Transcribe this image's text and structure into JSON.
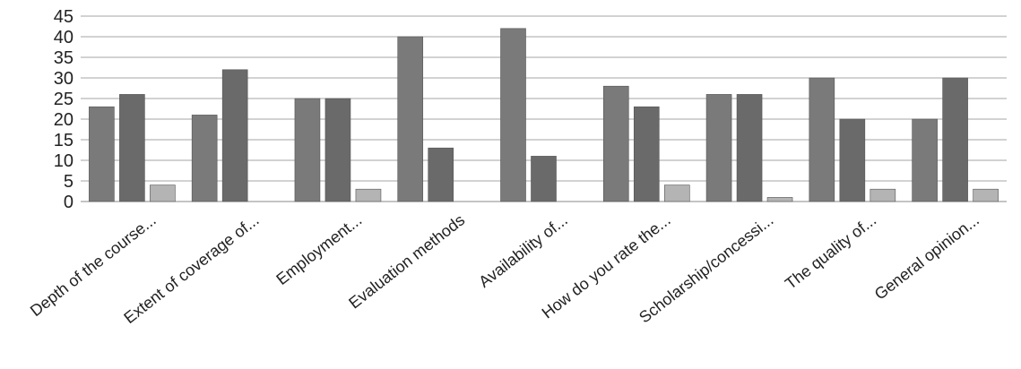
{
  "chart_data": {
    "type": "bar",
    "title": "",
    "xlabel": "",
    "ylabel": "",
    "ylim": [
      0,
      45
    ],
    "yticks": [
      0,
      5,
      10,
      15,
      20,
      25,
      30,
      35,
      40,
      45
    ],
    "grid": true,
    "legend": "none",
    "categories": [
      "Depth of the course...",
      "Extent of coverage of...",
      "Employment...",
      "Evaluation methods",
      "Availability of...",
      "How do you rate the...",
      "Scholarship/concessi...",
      "The quality of...",
      "General opinion..."
    ],
    "series": [
      {
        "values": [
          23,
          21,
          25,
          40,
          42,
          28,
          26,
          30,
          20
        ],
        "color": "#7a7a7a"
      },
      {
        "values": [
          26,
          32,
          25,
          13,
          11,
          23,
          26,
          20,
          30
        ],
        "color": "#6a6a6a"
      },
      {
        "values": [
          4,
          0,
          3,
          0,
          0,
          4,
          1,
          3,
          3
        ],
        "color": "#b4b4b4"
      }
    ]
  }
}
